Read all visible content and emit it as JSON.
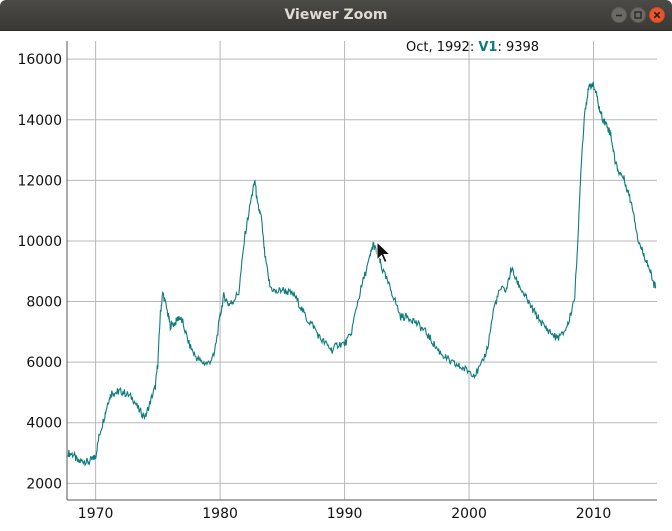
{
  "window": {
    "title": "Viewer Zoom",
    "buttons": [
      "minimize",
      "maximize",
      "close"
    ]
  },
  "readout": {
    "label": "Oct, 1992: ",
    "series": "V1",
    "separator": ": ",
    "value": "9398"
  },
  "colors": {
    "series": "#0e7c7b",
    "grid": "#b8b8b8",
    "close_button": "#e9572f"
  },
  "icons": [
    "minimize-icon",
    "maximize-icon",
    "close-icon",
    "cursor-arrow-icon"
  ],
  "chart_data": {
    "type": "line",
    "title": "",
    "xlabel": "",
    "ylabel": "",
    "xlim": [
      1967.7,
      2015.1
    ],
    "ylim": [
      1450,
      16600
    ],
    "grid": true,
    "x_ticks": [
      1970,
      1980,
      1990,
      2000,
      2010
    ],
    "y_ticks": [
      2000,
      4000,
      6000,
      8000,
      10000,
      12000,
      14000,
      16000
    ],
    "x_tick_labels": [
      "1970",
      "1980",
      "1990",
      "2000",
      "2010"
    ],
    "y_tick_labels": [
      "2000",
      "4000",
      "6000",
      "8000",
      "10000",
      "12000",
      "14000",
      "16000"
    ],
    "series": [
      {
        "name": "V1",
        "color": "#0e7c7b",
        "points": [
          [
            1967.8,
            3000
          ],
          [
            1968.2,
            2950
          ],
          [
            1968.6,
            2700
          ],
          [
            1969.0,
            2750
          ],
          [
            1969.4,
            2700
          ],
          [
            1969.8,
            2800
          ],
          [
            1970.0,
            2900
          ],
          [
            1970.3,
            3600
          ],
          [
            1970.7,
            4200
          ],
          [
            1971.0,
            4700
          ],
          [
            1971.3,
            5000
          ],
          [
            1971.7,
            5000
          ],
          [
            1972.0,
            5050
          ],
          [
            1972.5,
            4950
          ],
          [
            1973.0,
            4800
          ],
          [
            1973.5,
            4400
          ],
          [
            1974.0,
            4200
          ],
          [
            1974.4,
            4700
          ],
          [
            1974.8,
            5200
          ],
          [
            1975.0,
            6000
          ],
          [
            1975.2,
            7600
          ],
          [
            1975.4,
            8300
          ],
          [
            1975.8,
            7600
          ],
          [
            1976.0,
            7200
          ],
          [
            1976.4,
            7300
          ],
          [
            1976.7,
            7500
          ],
          [
            1977.0,
            7300
          ],
          [
            1977.5,
            6600
          ],
          [
            1978.0,
            6200
          ],
          [
            1978.5,
            6000
          ],
          [
            1979.0,
            5950
          ],
          [
            1979.5,
            6200
          ],
          [
            1980.0,
            7500
          ],
          [
            1980.3,
            8200
          ],
          [
            1980.7,
            7900
          ],
          [
            1981.0,
            8000
          ],
          [
            1981.5,
            8300
          ],
          [
            1982.0,
            10200
          ],
          [
            1982.5,
            11400
          ],
          [
            1982.8,
            12000
          ],
          [
            1983.0,
            11200
          ],
          [
            1983.3,
            10800
          ],
          [
            1983.6,
            9500
          ],
          [
            1984.0,
            8500
          ],
          [
            1984.5,
            8300
          ],
          [
            1985.0,
            8400
          ],
          [
            1985.5,
            8300
          ],
          [
            1986.0,
            8200
          ],
          [
            1986.5,
            7800
          ],
          [
            1987.0,
            7400
          ],
          [
            1987.5,
            7200
          ],
          [
            1988.0,
            6800
          ],
          [
            1988.5,
            6600
          ],
          [
            1989.0,
            6400
          ],
          [
            1989.5,
            6600
          ],
          [
            1990.0,
            6600
          ],
          [
            1990.5,
            6900
          ],
          [
            1991.0,
            7900
          ],
          [
            1991.5,
            8700
          ],
          [
            1992.0,
            9400
          ],
          [
            1992.3,
            9900
          ],
          [
            1992.6,
            9600
          ],
          [
            1992.8,
            9398
          ],
          [
            1993.0,
            9100
          ],
          [
            1993.5,
            8600
          ],
          [
            1994.0,
            8100
          ],
          [
            1994.5,
            7500
          ],
          [
            1995.0,
            7500
          ],
          [
            1995.5,
            7400
          ],
          [
            1996.0,
            7200
          ],
          [
            1996.5,
            7000
          ],
          [
            1997.0,
            6700
          ],
          [
            1997.5,
            6400
          ],
          [
            1998.0,
            6200
          ],
          [
            1998.5,
            6000
          ],
          [
            1999.0,
            5900
          ],
          [
            1999.5,
            5800
          ],
          [
            2000.0,
            5700
          ],
          [
            2000.5,
            5600
          ],
          [
            2001.0,
            5900
          ],
          [
            2001.5,
            6500
          ],
          [
            2002.0,
            7800
          ],
          [
            2002.5,
            8400
          ],
          [
            2003.0,
            8400
          ],
          [
            2003.4,
            9100
          ],
          [
            2003.8,
            8700
          ],
          [
            2004.2,
            8400
          ],
          [
            2004.6,
            8100
          ],
          [
            2005.0,
            7800
          ],
          [
            2005.5,
            7500
          ],
          [
            2006.0,
            7200
          ],
          [
            2006.5,
            7000
          ],
          [
            2007.0,
            6800
          ],
          [
            2007.5,
            6900
          ],
          [
            2008.0,
            7300
          ],
          [
            2008.5,
            8200
          ],
          [
            2008.8,
            10500
          ],
          [
            2009.0,
            12500
          ],
          [
            2009.3,
            14300
          ],
          [
            2009.6,
            15000
          ],
          [
            2009.9,
            15200
          ],
          [
            2010.2,
            14900
          ],
          [
            2010.5,
            14300
          ],
          [
            2010.8,
            14000
          ],
          [
            2011.1,
            13800
          ],
          [
            2011.4,
            13500
          ],
          [
            2011.7,
            12700
          ],
          [
            2012.0,
            12300
          ],
          [
            2012.4,
            12100
          ],
          [
            2012.8,
            11600
          ],
          [
            2013.2,
            11000
          ],
          [
            2013.6,
            10000
          ],
          [
            2014.0,
            9600
          ],
          [
            2014.4,
            9200
          ],
          [
            2014.8,
            8600
          ],
          [
            2015.0,
            8500
          ]
        ]
      }
    ]
  }
}
